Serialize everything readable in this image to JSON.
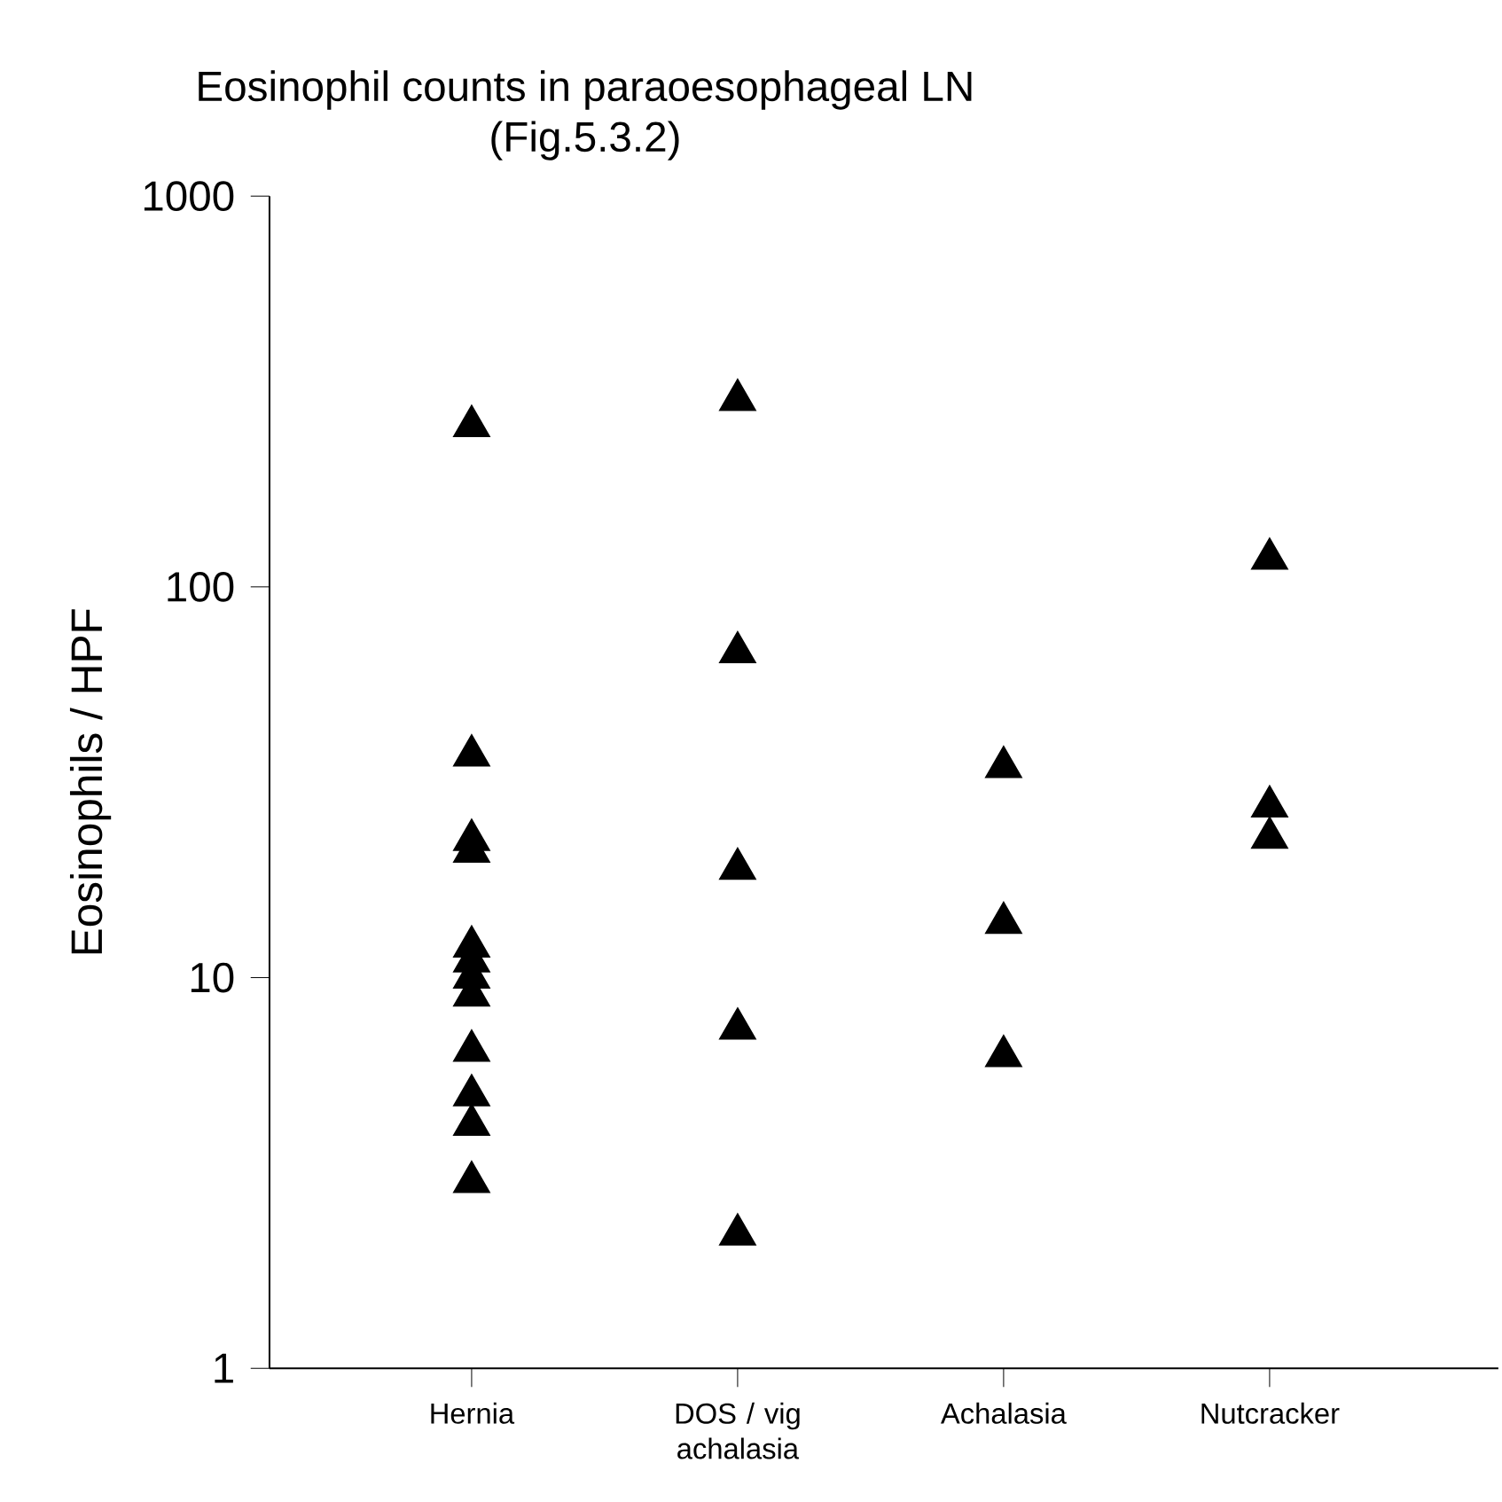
{
  "chart_data": {
    "type": "scatter",
    "title": "Eosinophil counts in paraoesophageal LN",
    "subtitle": "(Fig.5.3.2)",
    "ylabel": "Eosinophils / HPF",
    "categories": [
      "Hernia",
      "DOS / vig achalasia",
      "Achalasia",
      "Nutcracker"
    ],
    "series": [
      {
        "color": "#000000",
        "x": [
          "Hernia",
          "Hernia",
          "Hernia",
          "Hernia",
          "Hernia",
          "Hernia",
          "Hernia",
          "Hernia",
          "Hernia",
          "Hernia",
          "Hernia",
          "Hernia"
        ],
        "values": [
          258,
          37,
          22.5,
          21,
          12,
          11,
          10,
          9,
          6.5,
          5,
          4.2,
          3
        ]
      },
      {
        "color": "#000000",
        "x": [
          "DOS / vig achalasia",
          "DOS / vig achalasia",
          "DOS / vig achalasia",
          "DOS / vig achalasia",
          "DOS / vig achalasia"
        ],
        "values": [
          301,
          68,
          19,
          7.4,
          2.2
        ]
      },
      {
        "color": "#000000",
        "x": [
          "Achalasia",
          "Achalasia",
          "Achalasia"
        ],
        "values": [
          34.6,
          13.8,
          6.3
        ]
      },
      {
        "color": "#000000",
        "x": [
          "Nutcracker",
          "Nutcracker",
          "Nutcracker"
        ],
        "values": [
          118,
          27.4,
          22.8
        ]
      }
    ],
    "log": "y",
    "ylim": [
      1,
      1000
    ],
    "yticks": [
      1,
      10,
      100,
      1000
    ],
    "marker": "triangle",
    "grid": false
  }
}
